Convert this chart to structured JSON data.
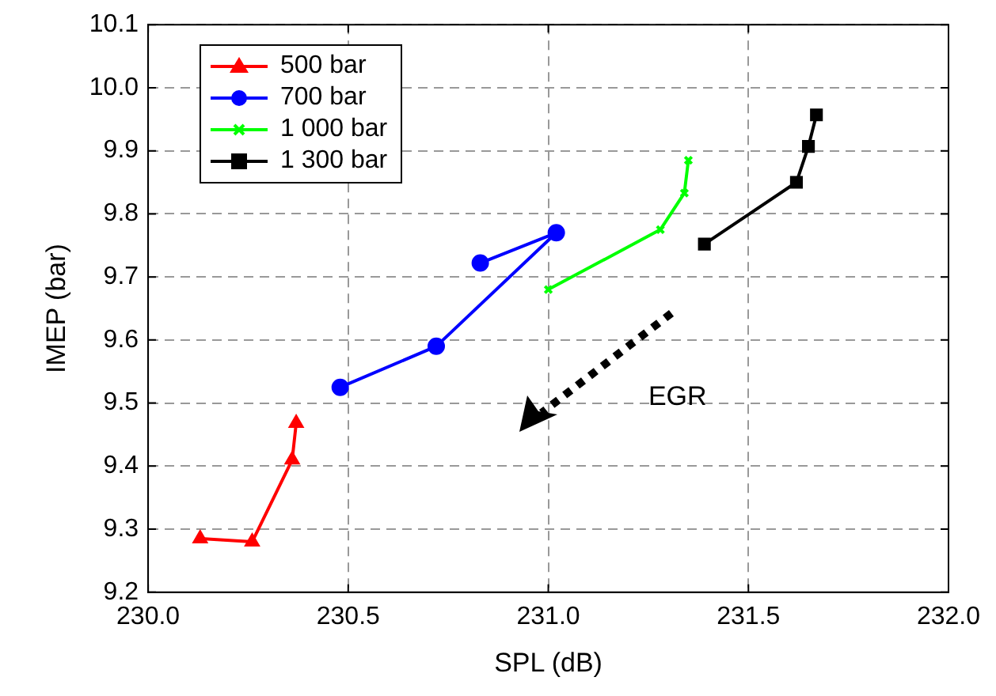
{
  "chart_data": {
    "type": "line",
    "xlabel": "SPL (dB)",
    "ylabel": "IMEP (bar)",
    "xlim": [
      230,
      232
    ],
    "xticks": [
      {
        "value": 230,
        "label": "230.0"
      },
      {
        "value": 230.5,
        "label": "230.5"
      },
      {
        "value": 231,
        "label": "231.0"
      },
      {
        "value": 231.5,
        "label": "231.5"
      },
      {
        "value": 232,
        "label": "232.0"
      }
    ],
    "ylim": [
      9.2,
      10.1
    ],
    "yticks": [
      9.2,
      9.3,
      9.4,
      9.5,
      9.6,
      9.7,
      9.8,
      9.9,
      {
        "value": 10,
        "label": "10.0"
      },
      10.1
    ],
    "grid": true,
    "legend": "top left",
    "line_style": "solid",
    "series": [
      {
        "name": "500 bar",
        "color": "#ff0000",
        "marker": "triangle",
        "x": [
          230.13,
          230.26,
          230.36,
          230.37
        ],
        "values": [
          9.285,
          9.28,
          9.41,
          9.468
        ]
      },
      {
        "name": "700 bar",
        "color": "#0000ff",
        "marker": "circle",
        "x": [
          230.48,
          230.72,
          231.02,
          230.83
        ],
        "values": [
          9.525,
          9.59,
          9.77,
          9.722
        ]
      },
      {
        "name": "1 000 bar",
        "color": "#00ff00",
        "marker": "cross",
        "x": [
          231.0,
          231.28,
          231.34,
          231.35
        ],
        "values": [
          9.68,
          9.775,
          9.833,
          9.885
        ]
      },
      {
        "name": "1 300 bar",
        "color": "#000000",
        "marker": "square",
        "x": [
          231.39,
          231.62,
          231.65,
          231.67
        ],
        "values": [
          9.752,
          9.85,
          9.907,
          9.957
        ]
      }
    ],
    "annotations": [
      "EGR"
    ]
  }
}
